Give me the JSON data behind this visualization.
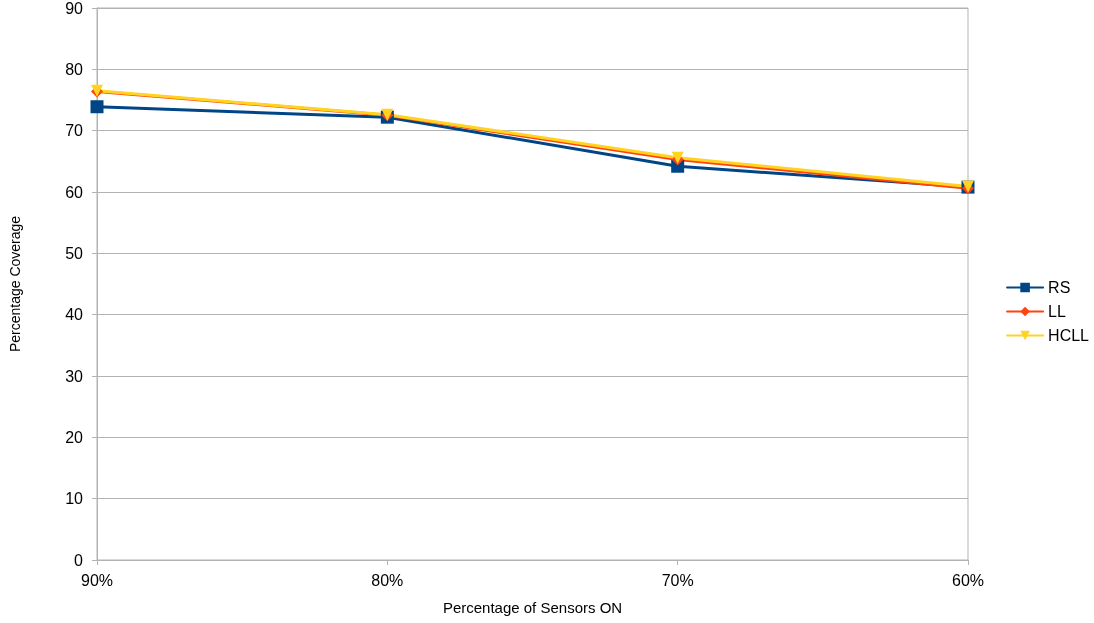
{
  "chart_data": {
    "type": "line",
    "xlabel": "Percentage of Sensors ON",
    "ylabel": "Percentage Coverage",
    "categories": [
      "90%",
      "80%",
      "70%",
      "60%"
    ],
    "series": [
      {
        "name": "RS",
        "color": "#004586",
        "marker": "square",
        "values": [
          73.9,
          72.2,
          64.2,
          60.8
        ]
      },
      {
        "name": "LL",
        "color": "#ff420e",
        "marker": "diamond",
        "values": [
          76.4,
          72.5,
          65.3,
          60.6
        ]
      },
      {
        "name": "HCLL",
        "color": "#ffd320",
        "marker": "triangle",
        "values": [
          76.5,
          72.6,
          65.6,
          60.9
        ]
      }
    ],
    "ylim": [
      0,
      90
    ],
    "yticks": [
      0,
      10,
      20,
      30,
      40,
      50,
      60,
      70,
      80,
      90
    ],
    "grid": "y",
    "legend": "right"
  }
}
